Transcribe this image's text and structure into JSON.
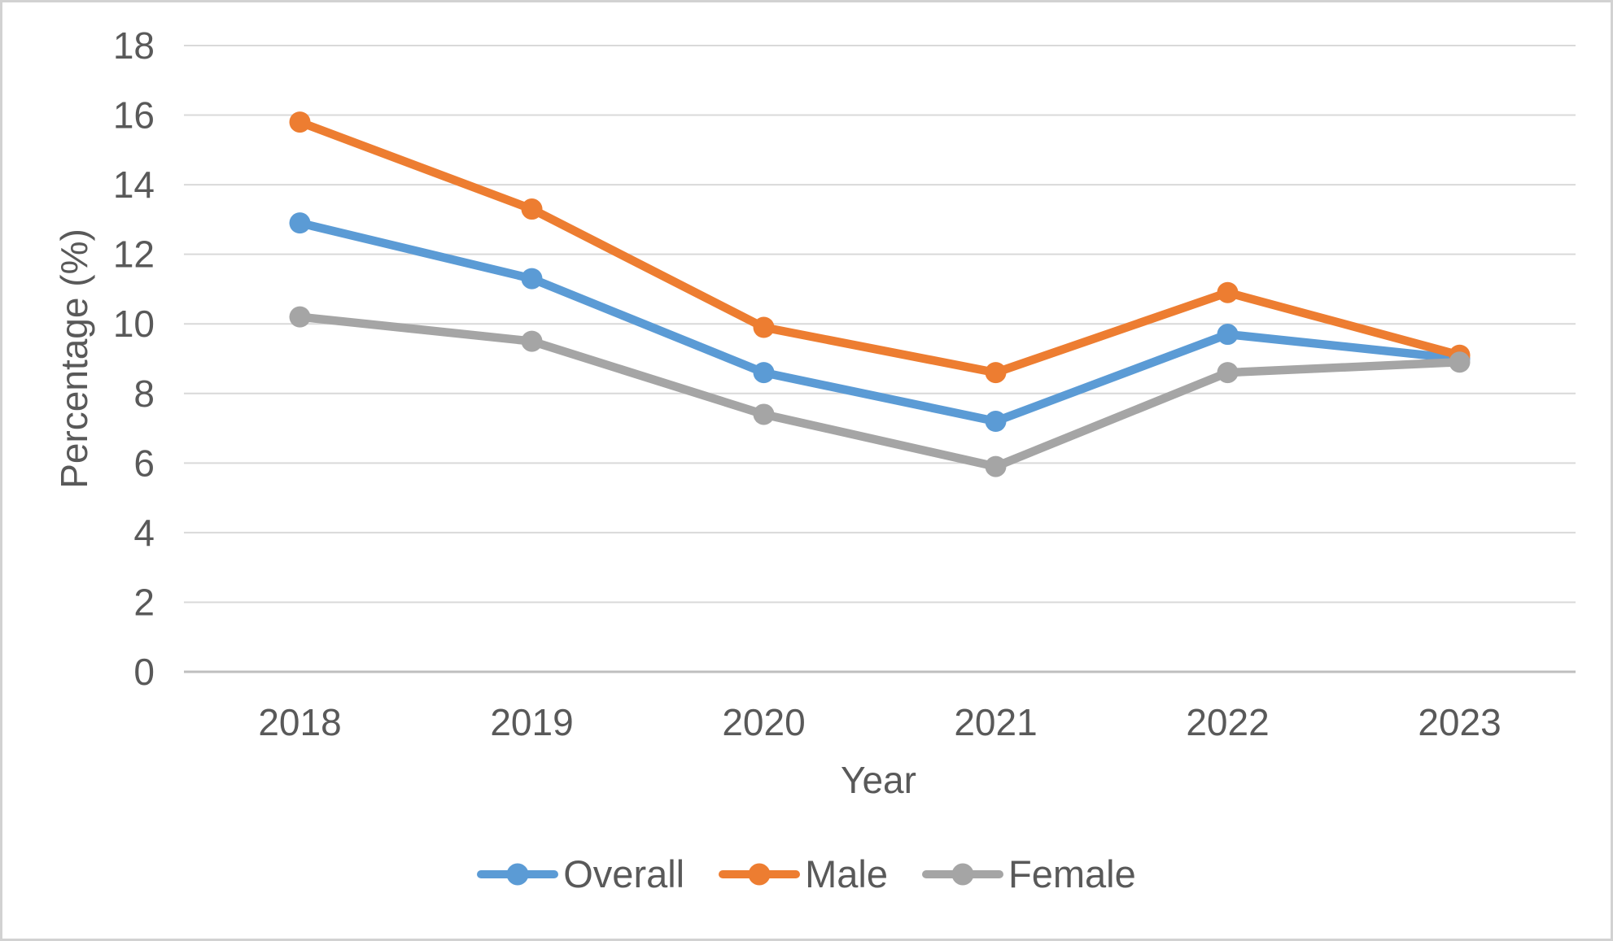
{
  "chart_data": {
    "type": "line",
    "title": "",
    "xlabel": "Year",
    "ylabel": "Percentage (%)",
    "categories": [
      "2018",
      "2019",
      "2020",
      "2021",
      "2022",
      "2023"
    ],
    "series": [
      {
        "name": "Overall",
        "color": "#5B9BD5",
        "values": [
          12.9,
          11.3,
          8.6,
          7.2,
          9.7,
          9.0
        ]
      },
      {
        "name": "Male",
        "color": "#ED7D31",
        "values": [
          15.8,
          13.3,
          9.9,
          8.6,
          10.9,
          9.1
        ]
      },
      {
        "name": "Female",
        "color": "#A5A5A5",
        "values": [
          10.2,
          9.5,
          7.4,
          5.9,
          8.6,
          8.9
        ]
      }
    ],
    "ylim": [
      0,
      18
    ],
    "yticks": [
      0,
      2,
      4,
      6,
      8,
      10,
      12,
      14,
      16,
      18
    ],
    "grid": true,
    "legend_position": "bottom"
  },
  "colors": {
    "background": "#FFFFFF",
    "border": "#D2D2D2",
    "gridline": "#D9D9D9",
    "axis_line": "#BFBFBF",
    "axis_text": "#595959"
  }
}
